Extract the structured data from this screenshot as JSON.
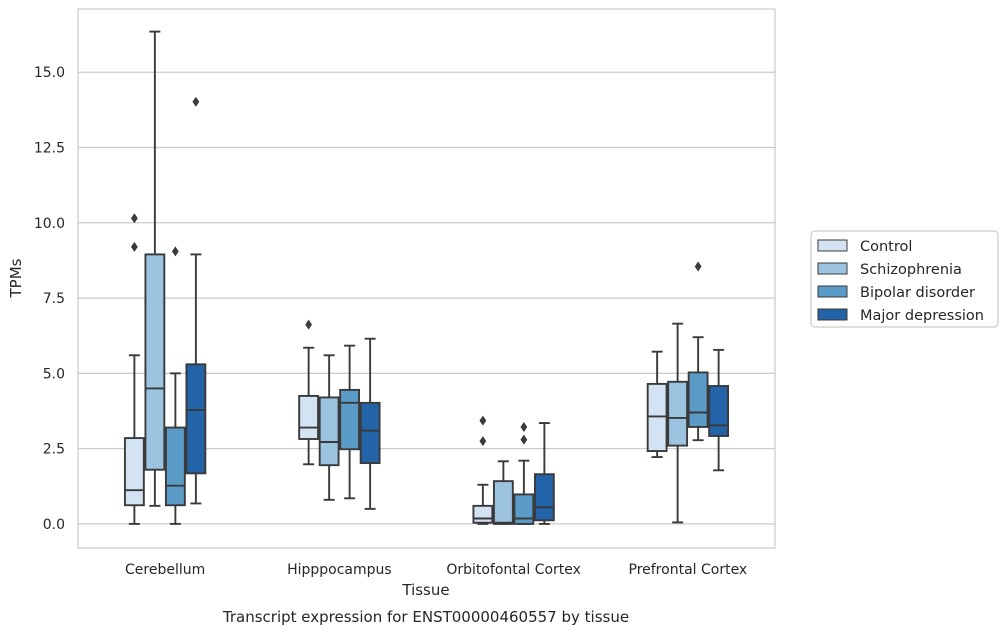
{
  "chart_data": {
    "type": "box",
    "caption": "Transcript expression for ENST00000460557 by tissue",
    "xlabel": "Tissue",
    "ylabel": "TPMs",
    "ylim": [
      -0.8,
      17.1
    ],
    "yticks": [
      0.0,
      2.5,
      5.0,
      7.5,
      10.0,
      12.5,
      15.0
    ],
    "ytick_labels": [
      "0.0",
      "2.5",
      "5.0",
      "7.5",
      "10.0",
      "12.5",
      "15.0"
    ],
    "grid": "horizontal",
    "legend_position": "outside-right",
    "categories": [
      "Cerebellum",
      "Hipppocampus",
      "Orbitofontal Cortex",
      "Prefrontal Cortex"
    ],
    "series": [
      {
        "name": "Control",
        "color": "#d4e3f3",
        "boxes": [
          {
            "whislo": 0.0,
            "q1": 0.62,
            "med": 1.12,
            "q3": 2.85,
            "whishi": 5.6,
            "fliers": [
              10.15,
              9.2
            ]
          },
          {
            "whislo": 1.98,
            "q1": 2.82,
            "med": 3.2,
            "q3": 4.25,
            "whishi": 5.85,
            "fliers": [
              6.62
            ]
          },
          {
            "whislo": 0.0,
            "q1": 0.04,
            "med": 0.18,
            "q3": 0.6,
            "whishi": 1.3,
            "fliers": [
              3.43,
              2.75
            ]
          },
          {
            "whislo": 2.22,
            "q1": 2.42,
            "med": 3.57,
            "q3": 4.65,
            "whishi": 5.72,
            "fliers": []
          }
        ]
      },
      {
        "name": "Schizophrenia",
        "color": "#9cc4e0",
        "boxes": [
          {
            "whislo": 0.6,
            "q1": 1.8,
            "med": 4.5,
            "q3": 8.95,
            "whishi": 16.35,
            "fliers": []
          },
          {
            "whislo": 0.8,
            "q1": 1.95,
            "med": 2.72,
            "q3": 4.2,
            "whishi": 5.6,
            "fliers": []
          },
          {
            "whislo": 0.0,
            "q1": 0.0,
            "med": 0.04,
            "q3": 1.42,
            "whishi": 2.08,
            "fliers": []
          },
          {
            "whislo": 0.05,
            "q1": 2.6,
            "med": 3.52,
            "q3": 4.72,
            "whishi": 6.65,
            "fliers": []
          }
        ]
      },
      {
        "name": "Bipolar disorder",
        "color": "#5a9bc8",
        "boxes": [
          {
            "whislo": 0.0,
            "q1": 0.62,
            "med": 1.27,
            "q3": 3.2,
            "whishi": 5.0,
            "fliers": [
              9.05
            ]
          },
          {
            "whislo": 0.85,
            "q1": 2.48,
            "med": 4.02,
            "q3": 4.45,
            "whishi": 5.92,
            "fliers": []
          },
          {
            "whislo": 0.0,
            "q1": 0.0,
            "med": 0.18,
            "q3": 0.98,
            "whishi": 2.1,
            "fliers": [
              3.22,
              2.8
            ]
          },
          {
            "whislo": 2.78,
            "q1": 3.22,
            "med": 3.7,
            "q3": 5.03,
            "whishi": 6.2,
            "fliers": [
              8.55
            ]
          }
        ]
      },
      {
        "name": "Major depression",
        "color": "#2363a7",
        "boxes": [
          {
            "whislo": 0.68,
            "q1": 1.68,
            "med": 3.78,
            "q3": 5.3,
            "whishi": 8.95,
            "fliers": [
              14.02
            ]
          },
          {
            "whislo": 0.5,
            "q1": 2.02,
            "med": 3.1,
            "q3": 4.02,
            "whishi": 6.15,
            "fliers": []
          },
          {
            "whislo": 0.0,
            "q1": 0.12,
            "med": 0.55,
            "q3": 1.65,
            "whishi": 3.35,
            "fliers": []
          },
          {
            "whislo": 1.78,
            "q1": 2.92,
            "med": 3.27,
            "q3": 4.58,
            "whishi": 5.78,
            "fliers": []
          }
        ]
      }
    ]
  }
}
